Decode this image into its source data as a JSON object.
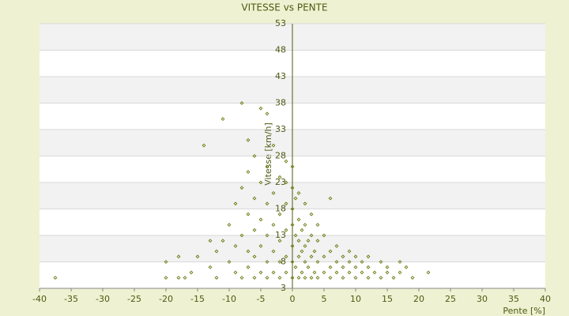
{
  "chart_data": {
    "type": "scatter",
    "title": "VITESSE vs PENTE",
    "x_label": "Pente [%]",
    "y_label": "Vitesse [km/h]",
    "color": "#6b7a10",
    "grid": true,
    "xlim": [
      -40,
      40
    ],
    "xticks": [
      -40,
      -35,
      -30,
      -25,
      -20,
      -15,
      -10,
      -5,
      0,
      5,
      10,
      15,
      20,
      25,
      30,
      35,
      40
    ],
    "ylim": [
      3,
      53
    ],
    "yticks": [
      3,
      8,
      13,
      18,
      23,
      28,
      33,
      38,
      43,
      48,
      53
    ],
    "x": [
      -37.5,
      -20,
      -18,
      -17,
      -20,
      -18,
      -16,
      -15,
      -13,
      -12,
      -12,
      -11,
      -10,
      -10,
      -9,
      -9,
      -9,
      -8,
      -8,
      -8,
      -8,
      -7,
      -7,
      -7,
      -7,
      -7,
      -6,
      -6,
      -6,
      -6,
      -6,
      -5,
      -5,
      -5,
      -5,
      -5,
      -4,
      -4,
      -4,
      -4,
      -4,
      -4,
      -3,
      -3,
      -3,
      -3,
      -3,
      -2,
      -2,
      -2,
      -2,
      -2,
      -1,
      -1,
      -1,
      -1,
      -1,
      -1,
      0,
      0,
      0,
      0,
      0,
      0,
      0,
      0.5,
      0.5,
      0.5,
      1,
      1,
      1,
      1,
      1,
      1.5,
      1.5,
      1.5,
      2,
      2,
      2,
      2,
      2,
      2.5,
      2.5,
      3,
      3,
      3,
      3,
      3.5,
      3.5,
      4,
      4,
      4,
      4,
      5,
      5,
      5,
      6,
      6,
      6,
      6,
      7,
      7,
      7,
      8,
      8,
      8,
      9,
      9,
      9,
      10,
      10,
      10,
      11,
      11,
      12,
      12,
      12,
      13,
      14,
      14,
      15,
      15,
      16,
      17,
      17,
      18,
      19,
      21.5,
      -14,
      -11,
      -13
    ],
    "values": [
      5,
      5,
      5,
      5,
      8,
      9,
      6,
      9,
      7,
      5,
      10,
      12,
      8,
      15,
      6,
      11,
      19,
      5,
      13,
      22,
      38,
      7,
      10,
      17,
      25,
      31,
      5,
      9,
      14,
      20,
      28,
      6,
      11,
      16,
      23,
      37,
      5,
      8,
      13,
      19,
      26,
      36,
      6,
      10,
      15,
      21,
      30,
      5,
      8,
      12,
      17,
      24,
      6,
      9,
      14,
      19,
      23,
      27,
      5,
      8,
      11,
      15,
      18,
      22,
      26,
      7,
      13,
      20,
      5,
      9,
      12,
      16,
      21,
      6,
      10,
      14,
      5,
      8,
      11,
      15,
      19,
      7,
      12,
      5,
      9,
      13,
      17,
      6,
      10,
      5,
      8,
      12,
      15,
      6,
      9,
      13,
      5,
      7,
      10,
      20,
      6,
      8,
      11,
      5,
      7,
      9,
      6,
      8,
      10,
      5,
      7,
      9,
      6,
      8,
      5,
      7,
      9,
      6,
      5,
      8,
      6,
      7,
      5,
      6,
      8,
      7,
      5,
      6,
      30,
      35,
      12
    ]
  }
}
